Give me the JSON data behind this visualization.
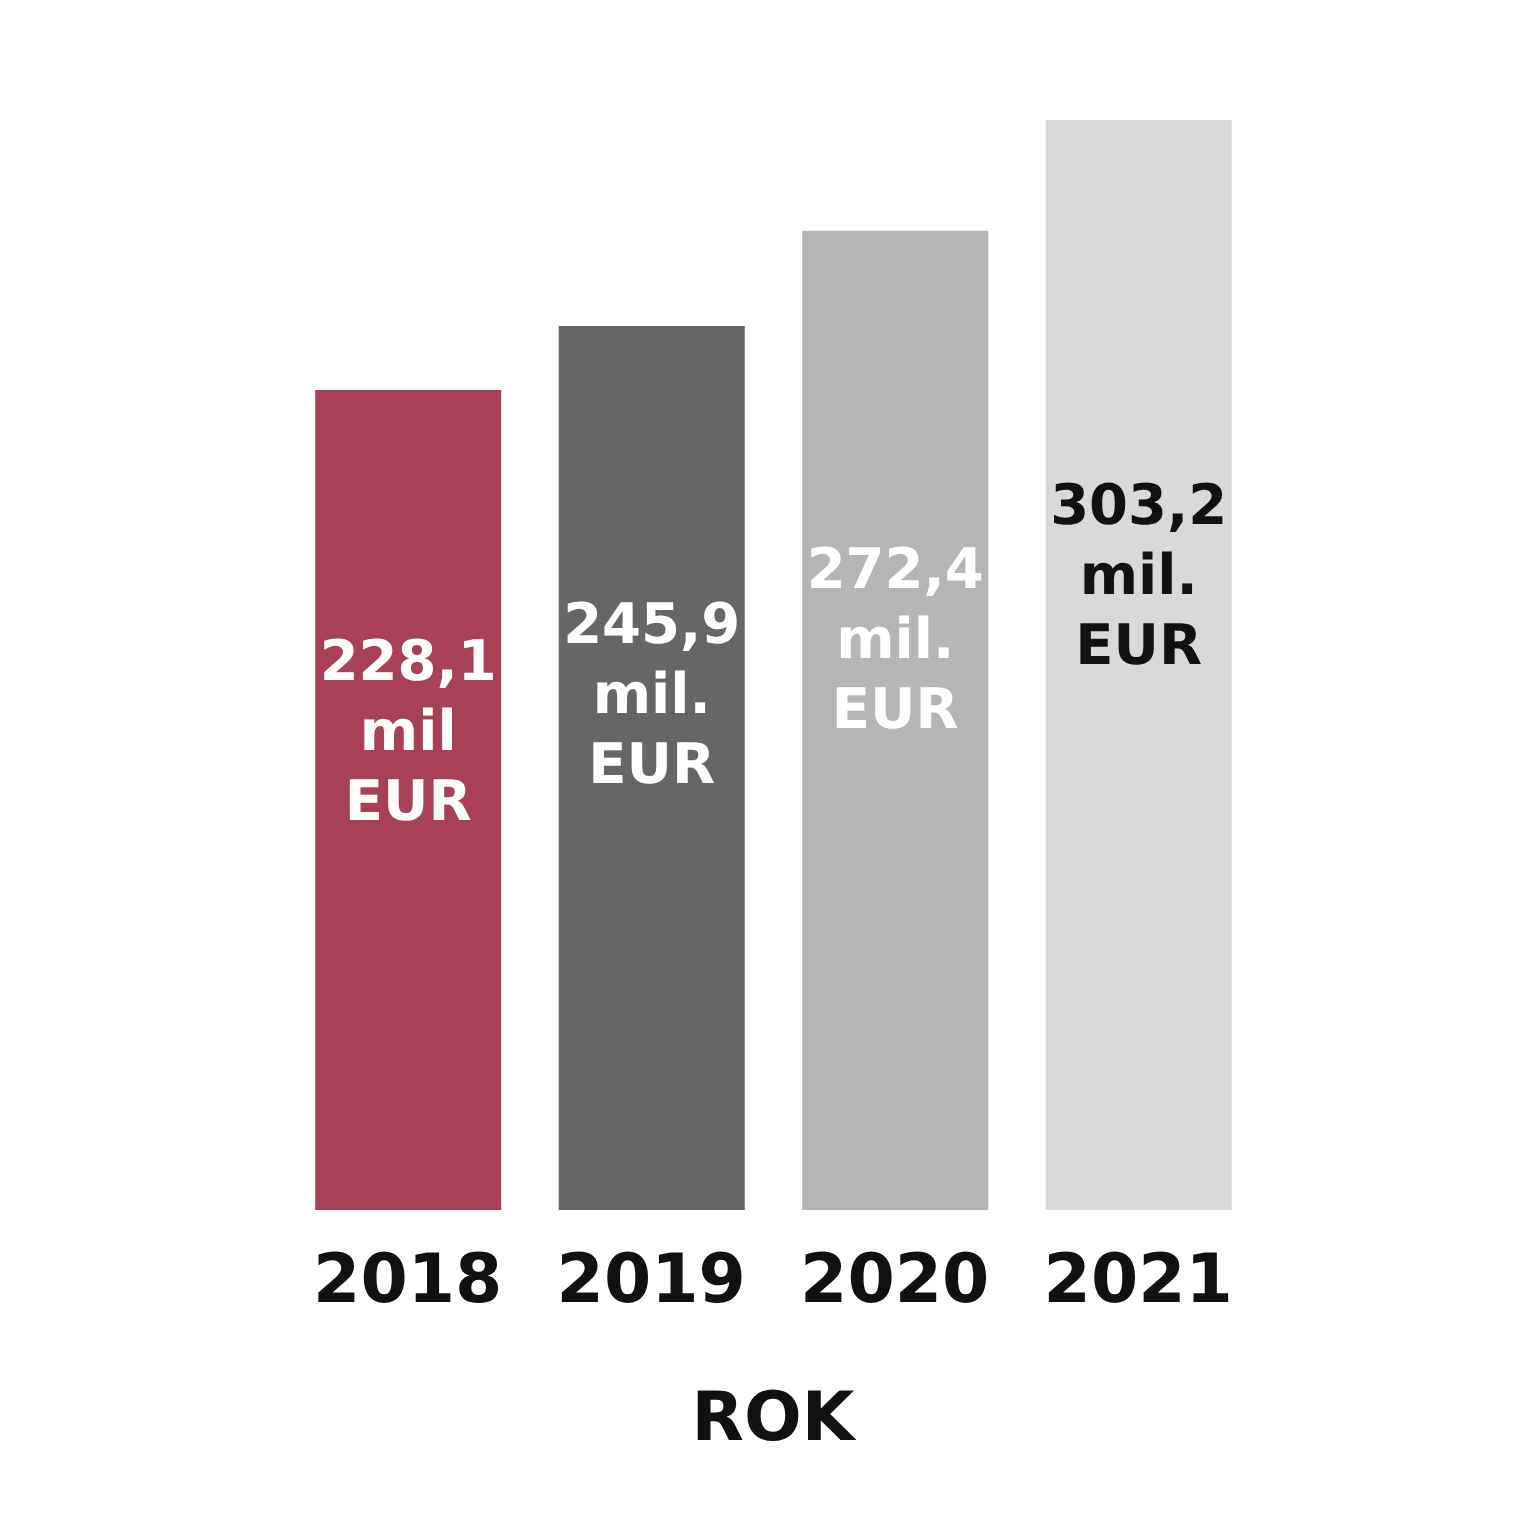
{
  "chart_data": {
    "type": "bar",
    "xlabel": "ROK",
    "categories": [
      "2018",
      "2019",
      "2020",
      "2021"
    ],
    "values": [
      228.1,
      245.9,
      272.4,
      303.2
    ],
    "colors": [
      "#a84058",
      "#666666",
      "#b5b5b5",
      "#d9d9d9"
    ],
    "value_labels": [
      "228,1 mil EUR",
      "245,9 mil. EUR",
      "272,4 mil. EUR",
      "303,2 mil. EUR"
    ],
    "grid": false,
    "legend": false
  }
}
